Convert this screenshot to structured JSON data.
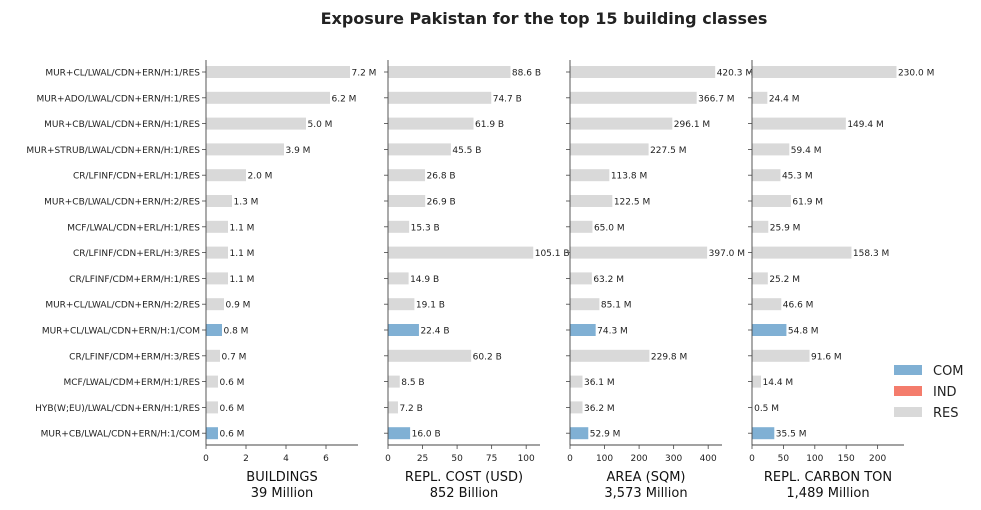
{
  "chart_data": {
    "type": "bar",
    "orientation": "horizontal",
    "title": "Exposure Pakistan for the top 15 building classes",
    "categories": [
      "MUR+CL/LWAL/CDN+ERN/H:1/RES",
      "MUR+ADO/LWAL/CDN+ERN/H:1/RES",
      "MUR+CB/LWAL/CDN+ERN/H:1/RES",
      "MUR+STRUB/LWAL/CDN+ERN/H:1/RES",
      "CR/LFINF/CDN+ERL/H:1/RES",
      "MUR+CB/LWAL/CDN+ERN/H:2/RES",
      "MCF/LWAL/CDN+ERL/H:1/RES",
      "CR/LFINF/CDN+ERL/H:3/RES",
      "CR/LFINF/CDM+ERM/H:1/RES",
      "MUR+CL/LWAL/CDN+ERN/H:2/RES",
      "MUR+CL/LWAL/CDN+ERN/H:1/COM",
      "CR/LFINF/CDM+ERM/H:3/RES",
      "MCF/LWAL/CDM+ERM/H:1/RES",
      "HYB(W;EU)/LWAL/CDN+ERN/H:1/RES",
      "MUR+CB/LWAL/CDN+ERN/H:1/COM"
    ],
    "occupancy": [
      "RES",
      "RES",
      "RES",
      "RES",
      "RES",
      "RES",
      "RES",
      "RES",
      "RES",
      "RES",
      "COM",
      "RES",
      "RES",
      "RES",
      "COM"
    ],
    "colors": {
      "COM": "#80b0d4",
      "IND": "#f47c6c",
      "RES": "#d9d9d9"
    },
    "legend": {
      "position": "right",
      "entries": [
        "COM",
        "IND",
        "RES"
      ]
    },
    "panels": [
      {
        "xlabel": "BUILDINGS",
        "total": "39 Million",
        "xlim": [
          0,
          7.6
        ],
        "ticks": [
          0,
          2,
          4,
          6
        ],
        "values": [
          7.2,
          6.2,
          5.0,
          3.9,
          2.0,
          1.3,
          1.1,
          1.1,
          1.1,
          0.9,
          0.8,
          0.7,
          0.6,
          0.6,
          0.6
        ],
        "labels": [
          "7.2 M",
          "6.2 M",
          "5.0 M",
          "3.9 M",
          "2.0 M",
          "1.3 M",
          "1.1 M",
          "1.1 M",
          "1.1 M",
          "0.9 M",
          "0.8 M",
          "0.7 M",
          "0.6 M",
          "0.6 M",
          "0.6 M"
        ]
      },
      {
        "xlabel": "REPL. COST (USD)",
        "total": "852 Billion",
        "xlim": [
          0,
          110
        ],
        "ticks": [
          0,
          25,
          50,
          75,
          100
        ],
        "values": [
          88.6,
          74.7,
          61.9,
          45.5,
          26.8,
          26.9,
          15.3,
          105.1,
          14.9,
          19.1,
          22.4,
          60.2,
          8.5,
          7.2,
          16.0
        ],
        "labels": [
          "88.6 B",
          "74.7 B",
          "61.9 B",
          "45.5 B",
          "26.8 B",
          "26.9 B",
          "15.3 B",
          "105.1 B",
          "14.9 B",
          "19.1 B",
          "22.4 B",
          "60.2 B",
          "8.5 B",
          "7.2 B",
          "16.0 B"
        ]
      },
      {
        "xlabel": "AREA (SQM)",
        "total": "3,573 Million",
        "xlim": [
          0,
          440
        ],
        "ticks": [
          0,
          100,
          200,
          300,
          400
        ],
        "values": [
          420.3,
          366.7,
          296.1,
          227.5,
          113.8,
          122.5,
          65.0,
          397.0,
          63.2,
          85.1,
          74.3,
          229.8,
          36.1,
          36.2,
          52.9
        ],
        "labels": [
          "420.3 M",
          "366.7 M",
          "296.1 M",
          "227.5 M",
          "113.8 M",
          "122.5 M",
          "65.0 M",
          "397.0 M",
          "63.2 M",
          "85.1 M",
          "74.3 M",
          "229.8 M",
          "36.1 M",
          "36.2 M",
          "52.9 M"
        ]
      },
      {
        "xlabel": "REPL. CARBON TON",
        "total": "1,489 Million",
        "xlim": [
          0,
          242
        ],
        "ticks": [
          0,
          50,
          100,
          150,
          200
        ],
        "values": [
          230.0,
          24.4,
          149.4,
          59.4,
          45.3,
          61.9,
          25.9,
          158.3,
          25.2,
          46.6,
          54.8,
          91.6,
          14.4,
          0.5,
          35.5
        ],
        "labels": [
          "230.0 M",
          "24.4 M",
          "149.4 M",
          "59.4 M",
          "45.3 M",
          "61.9 M",
          "25.9 M",
          "158.3 M",
          "25.2 M",
          "46.6 M",
          "54.8 M",
          "91.6 M",
          "14.4 M",
          "0.5 M",
          "35.5 M"
        ]
      }
    ]
  }
}
